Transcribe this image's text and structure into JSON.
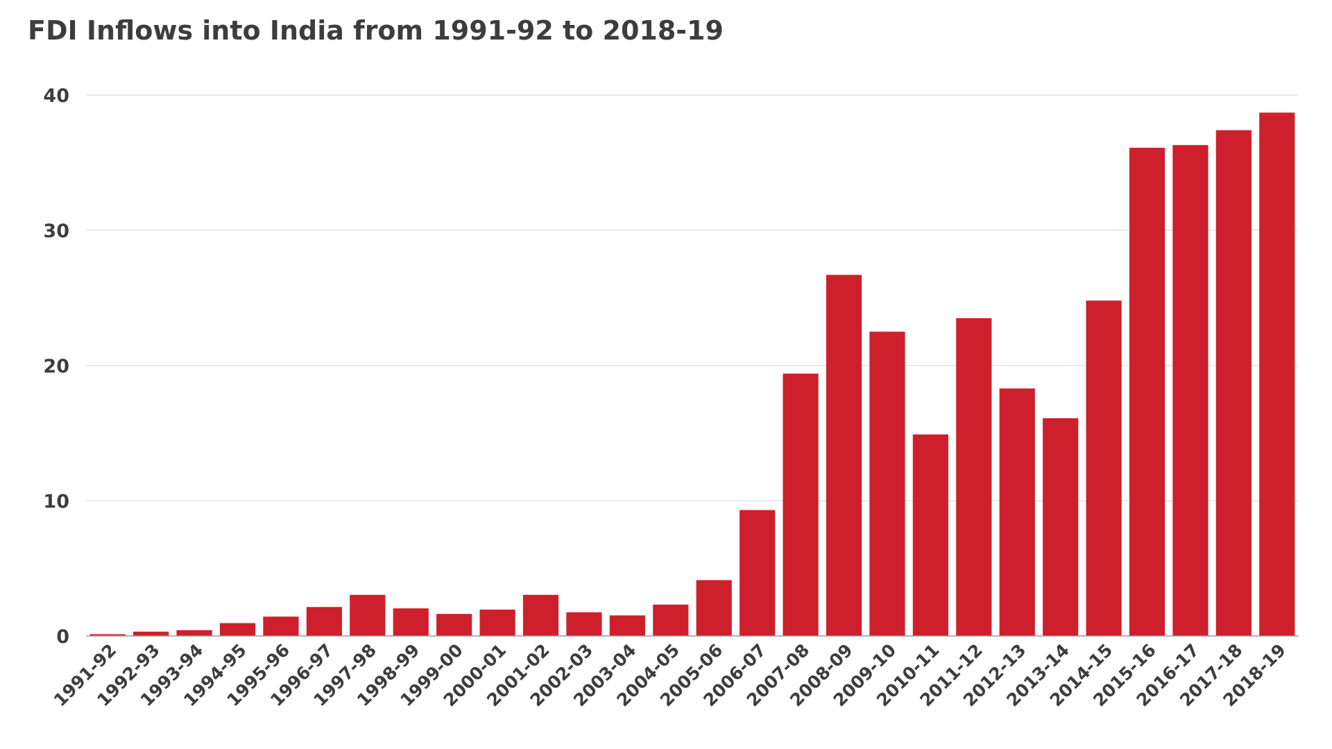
{
  "chart_data": {
    "type": "bar",
    "title": "FDI Inflows into India from 1991-92 to 2018-19",
    "xlabel": "",
    "ylabel": "",
    "categories": [
      "1991-92",
      "1992-93",
      "1993-94",
      "1994-95",
      "1995-96",
      "1996-97",
      "1997-98",
      "1998-99",
      "1999-00",
      "2000-01",
      "2001-02",
      "2002-03",
      "2003-04",
      "2004-05",
      "2005-06",
      "2006-07",
      "2007-08",
      "2008-09",
      "2009-10",
      "2010-11",
      "2011-12",
      "2012-13",
      "2013-14",
      "2014-15",
      "2015-16",
      "2016-17",
      "2017-18",
      "2018-19"
    ],
    "values": [
      0.13,
      0.32,
      0.43,
      0.95,
      1.43,
      2.14,
      3.04,
      2.04,
      1.63,
      1.95,
      3.04,
      1.75,
      1.52,
      2.32,
      4.13,
      9.31,
      19.4,
      26.7,
      22.5,
      14.9,
      23.5,
      18.3,
      16.1,
      24.8,
      36.1,
      36.3,
      37.4,
      38.7
    ],
    "ylim": [
      0,
      40
    ],
    "yticks": [
      0,
      10,
      20,
      30,
      40
    ],
    "grid": true,
    "legend": "none",
    "bar_color": "#cd202c"
  }
}
